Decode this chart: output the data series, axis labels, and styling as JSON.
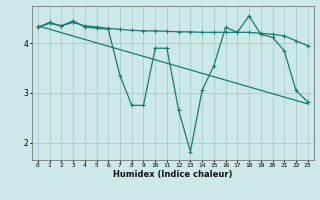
{
  "title": "",
  "xlabel": "Humidex (Indice chaleur)",
  "ylabel": "",
  "background_color": "#cce8e8",
  "line_color": "#1a7a6e",
  "grid_color": "#aacccc",
  "xlim": [
    -0.5,
    23.5
  ],
  "ylim": [
    1.65,
    4.75
  ],
  "yticks": [
    2,
    3,
    4
  ],
  "xticks": [
    0,
    1,
    2,
    3,
    4,
    5,
    6,
    7,
    8,
    9,
    10,
    11,
    12,
    13,
    14,
    15,
    16,
    17,
    18,
    19,
    20,
    21,
    22,
    23
  ],
  "series": [
    {
      "x": [
        0,
        1,
        2,
        3,
        4,
        5,
        6,
        7,
        8,
        9,
        10,
        11,
        12,
        13,
        14,
        15,
        16,
        17,
        18,
        19,
        20,
        21,
        22,
        23
      ],
      "y": [
        4.32,
        4.4,
        4.35,
        4.42,
        4.35,
        4.33,
        4.3,
        4.28,
        4.26,
        4.25,
        4.25,
        4.24,
        4.23,
        4.23,
        4.22,
        4.22,
        4.22,
        4.22,
        4.22,
        4.2,
        4.18,
        4.15,
        4.05,
        3.95
      ]
    },
    {
      "x": [
        0,
        1,
        2,
        3,
        4,
        5,
        6,
        7,
        8,
        9,
        10,
        11,
        12,
        13,
        14,
        15,
        16,
        17,
        18,
        19,
        20,
        21,
        22,
        23
      ],
      "y": [
        4.32,
        4.42,
        4.35,
        4.45,
        4.33,
        4.3,
        4.28,
        3.35,
        2.75,
        2.75,
        3.9,
        3.9,
        2.65,
        1.82,
        3.05,
        3.55,
        4.32,
        4.22,
        4.55,
        4.18,
        4.12,
        3.85,
        3.05,
        2.82
      ]
    },
    {
      "x": [
        0,
        23
      ],
      "y": [
        4.35,
        2.78
      ]
    }
  ]
}
